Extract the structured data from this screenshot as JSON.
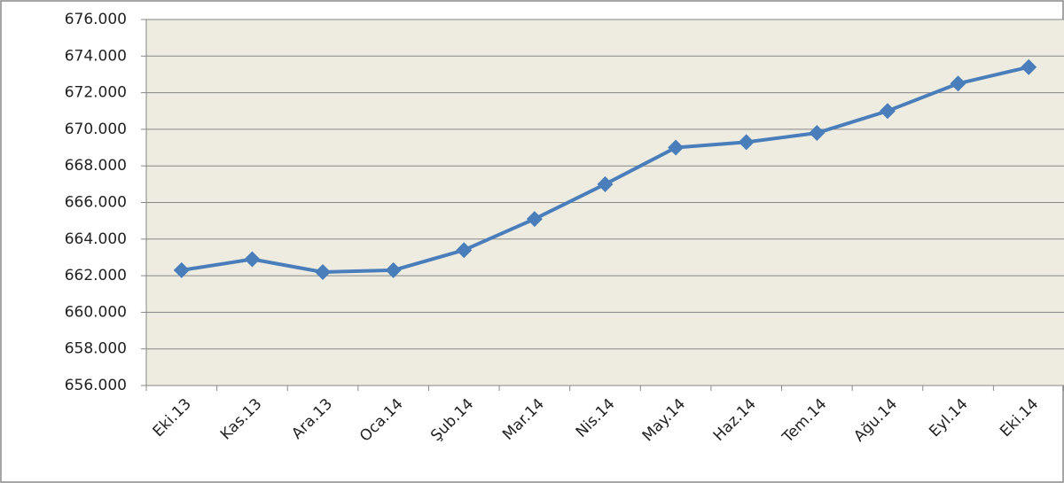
{
  "chart_data": {
    "type": "line",
    "categories": [
      "Eki.13",
      "Kas.13",
      "Ara.13",
      "Oca.14",
      "Şub.14",
      "Mar.14",
      "Nis.14",
      "May.14",
      "Haz.14",
      "Tem.14",
      "Ağu.14",
      "Eyl.14",
      "Eki.14"
    ],
    "series": [
      {
        "color": "#4a7ebb",
        "values": [
          662300,
          662900,
          662200,
          662300,
          663400,
          665100,
          667000,
          669000,
          669300,
          669800,
          671000,
          672500,
          673400
        ]
      }
    ],
    "ylim": [
      656000,
      676000
    ],
    "yticks": [
      {
        "value": 656000,
        "label": "656.000"
      },
      {
        "value": 658000,
        "label": "658.000"
      },
      {
        "value": 660000,
        "label": "660.000"
      },
      {
        "value": 662000,
        "label": "662.000"
      },
      {
        "value": 664000,
        "label": "664.000"
      },
      {
        "value": 666000,
        "label": "666.000"
      },
      {
        "value": 668000,
        "label": "668.000"
      },
      {
        "value": 670000,
        "label": "670.000"
      },
      {
        "value": 672000,
        "label": "672.000"
      },
      {
        "value": 674000,
        "label": "674.000"
      },
      {
        "value": 676000,
        "label": "676.000"
      }
    ],
    "grid": true
  }
}
